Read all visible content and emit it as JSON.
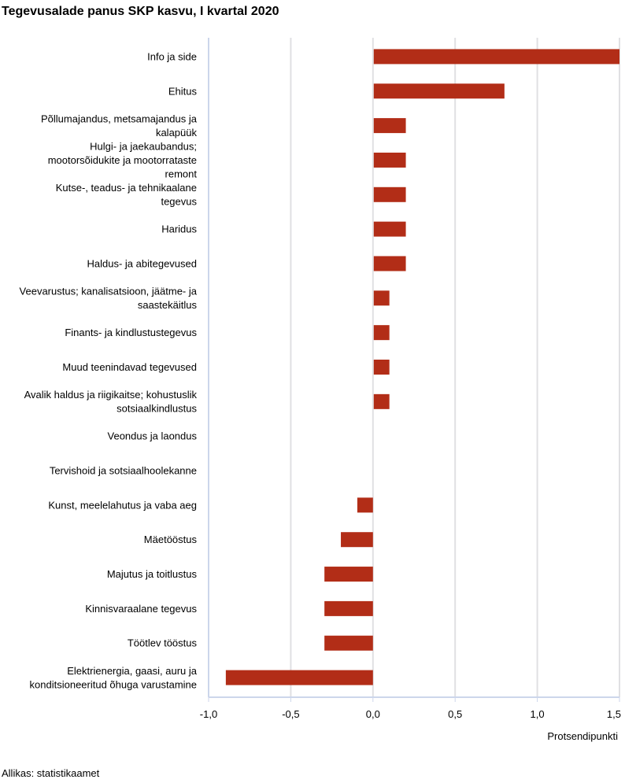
{
  "chart_data": {
    "type": "bar",
    "orientation": "horizontal",
    "title": "Tegevusalade panus SKP kasvu, I kvartal 2020",
    "xlabel": "Protsendipunkti",
    "ylabel": "",
    "xlim": [
      -1.0,
      1.5
    ],
    "xticks": [
      -1.0,
      -0.5,
      0.0,
      0.5,
      1.0,
      1.5
    ],
    "xtick_labels": [
      "-1,0",
      "-0,5",
      "0,0",
      "0,5",
      "1,0",
      "1,5"
    ],
    "grid": true,
    "bar_color": "#b22d17",
    "categories": [
      [
        "Info ja side"
      ],
      [
        "Ehitus"
      ],
      [
        "Põllumajandus, metsamajandus ja",
        "kalapüük"
      ],
      [
        "Hulgi- ja jaekaubandus;",
        "mootorsõidukite ja mootorrataste",
        "remont"
      ],
      [
        "Kutse-, teadus- ja tehnikaalane",
        "tegevus"
      ],
      [
        "Haridus"
      ],
      [
        "Haldus- ja abitegevused"
      ],
      [
        "Veevarustus; kanalisatsioon, jäätme- ja",
        "saastekäitlus"
      ],
      [
        "Finants- ja kindlustustegevus"
      ],
      [
        "Muud teenindavad tegevused"
      ],
      [
        "Avalik haldus ja riigikaitse; kohustuslik",
        "sotsiaalkindlustus"
      ],
      [
        "Veondus ja laondus"
      ],
      [
        "Tervishoid ja sotsiaalhoolekanne"
      ],
      [
        "Kunst, meelelahutus ja vaba aeg"
      ],
      [
        "Mäetööstus"
      ],
      [
        "Majutus ja toitlustus"
      ],
      [
        "Kinnisvaraalane tegevus"
      ],
      [
        "Töötlev tööstus"
      ],
      [
        "Elektrienergia, gaasi, auru ja",
        "konditsioneeritud õhuga varustamine"
      ]
    ],
    "values": [
      1.5,
      0.8,
      0.2,
      0.2,
      0.2,
      0.2,
      0.2,
      0.1,
      0.1,
      0.1,
      0.1,
      0.0,
      0.0,
      -0.1,
      -0.2,
      -0.3,
      -0.3,
      -0.3,
      -0.9
    ]
  },
  "source": "Allikas: statistikaamet"
}
